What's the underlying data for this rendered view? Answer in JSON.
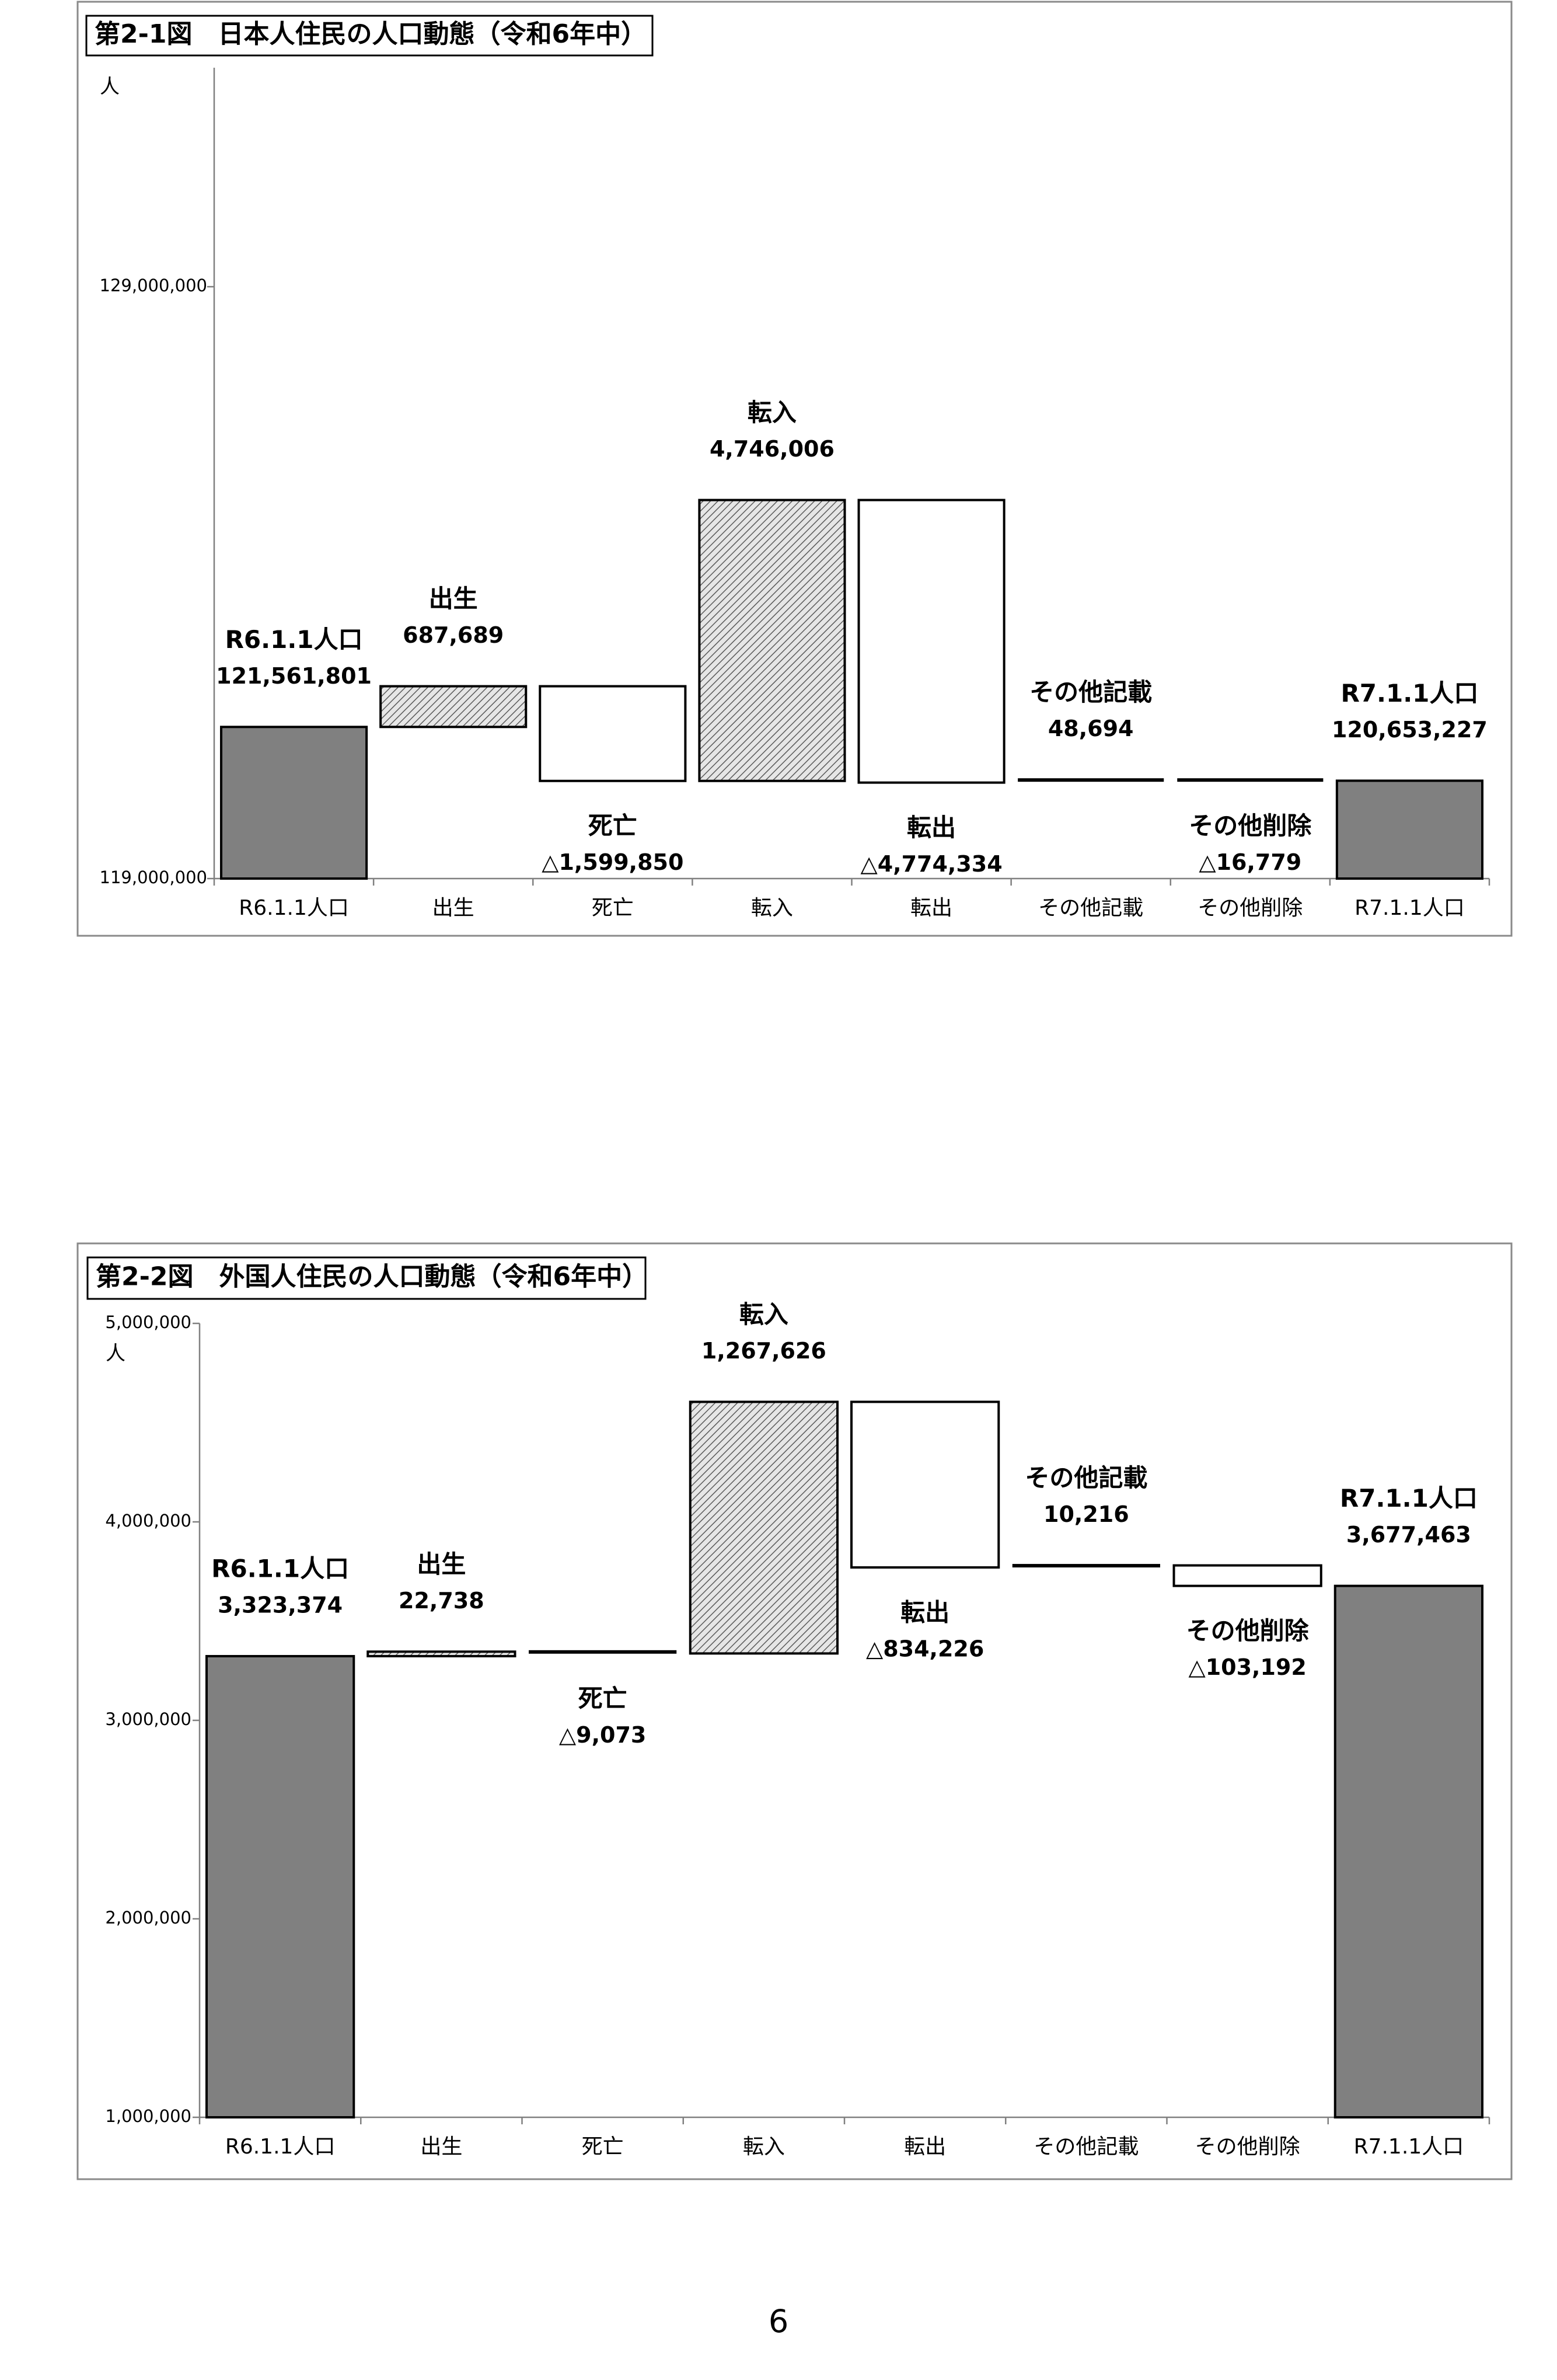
{
  "chart_data": [
    {
      "type": "waterfall",
      "title": "第2-1図　日本人住民の人口動態（令和6年中）",
      "unit_label": "人",
      "ylim": [
        119000000,
        132700000
      ],
      "yticks": [
        {
          "value": 119000000,
          "label": "119,000,000"
        },
        {
          "value": 129000000,
          "label": "129,000,000"
        }
      ],
      "categories": [
        "R6.1.1人口",
        "出生",
        "死亡",
        "転入",
        "転出",
        "その他記載",
        "その他削除",
        "R7.1.1人口"
      ],
      "steps": [
        {
          "kind": "total",
          "base": 119000000,
          "top": 121561801,
          "label": "R6.1.1人口",
          "value_text": "121,561,801",
          "fill": "gray"
        },
        {
          "kind": "increase",
          "base": 121561801,
          "top": 122249490,
          "label": "出生",
          "value_text": "687,689",
          "fill": "hatch"
        },
        {
          "kind": "decrease",
          "base": 120649640,
          "top": 122249490,
          "label": "死亡",
          "value_text": "△1,599,850",
          "fill": "white"
        },
        {
          "kind": "increase",
          "base": 120649640,
          "top": 125395646,
          "label": "転入",
          "value_text": "4,746,006",
          "fill": "hatch"
        },
        {
          "kind": "decrease",
          "base": 120621312,
          "top": 125395646,
          "label": "転出",
          "value_text": "△4,774,334",
          "fill": "white"
        },
        {
          "kind": "increase",
          "base": 120621312,
          "top": 120670006,
          "label": "その他記載",
          "value_text": "48,694",
          "fill": "hatch"
        },
        {
          "kind": "decrease",
          "base": 120653227,
          "top": 120670006,
          "label": "その他削除",
          "value_text": "△16,779",
          "fill": "white"
        },
        {
          "kind": "total",
          "base": 119000000,
          "top": 120653227,
          "label": "R7.1.1人口",
          "value_text": "120,653,227",
          "fill": "gray"
        }
      ]
    },
    {
      "type": "waterfall",
      "title": "第2-2図　外国人住民の人口動態（令和6年中）",
      "unit_label": "人",
      "ylim": [
        1000000,
        5000000
      ],
      "yticks": [
        {
          "value": 1000000,
          "label": "1,000,000"
        },
        {
          "value": 2000000,
          "label": "2,000,000"
        },
        {
          "value": 3000000,
          "label": "3,000,000"
        },
        {
          "value": 4000000,
          "label": "4,000,000"
        },
        {
          "value": 5000000,
          "label": "5,000,000"
        }
      ],
      "categories": [
        "R6.1.1人口",
        "出生",
        "死亡",
        "転入",
        "転出",
        "その他記載",
        "その他削除",
        "R7.1.1人口"
      ],
      "steps": [
        {
          "kind": "total",
          "base": 1000000,
          "top": 3323374,
          "label": "R6.1.1人口",
          "value_text": "3,323,374",
          "fill": "gray"
        },
        {
          "kind": "increase",
          "base": 3323374,
          "top": 3346112,
          "label": "出生",
          "value_text": "22,738",
          "fill": "hatch"
        },
        {
          "kind": "decrease",
          "base": 3337039,
          "top": 3346112,
          "label": "死亡",
          "value_text": "△9,073",
          "fill": "white"
        },
        {
          "kind": "increase",
          "base": 3337039,
          "top": 4604665,
          "label": "転入",
          "value_text": "1,267,626",
          "fill": "hatch"
        },
        {
          "kind": "decrease",
          "base": 3770439,
          "top": 4604665,
          "label": "転出",
          "value_text": "△834,226",
          "fill": "white"
        },
        {
          "kind": "increase",
          "base": 3770439,
          "top": 3780655,
          "label": "その他記載",
          "value_text": "10,216",
          "fill": "hatch"
        },
        {
          "kind": "decrease",
          "base": 3677463,
          "top": 3780655,
          "label": "その他削除",
          "value_text": "△103,192",
          "fill": "white"
        },
        {
          "kind": "total",
          "base": 1000000,
          "top": 3677463,
          "label": "R7.1.1人口",
          "value_text": "3,677,463",
          "fill": "gray"
        }
      ]
    }
  ],
  "page_number": "6"
}
